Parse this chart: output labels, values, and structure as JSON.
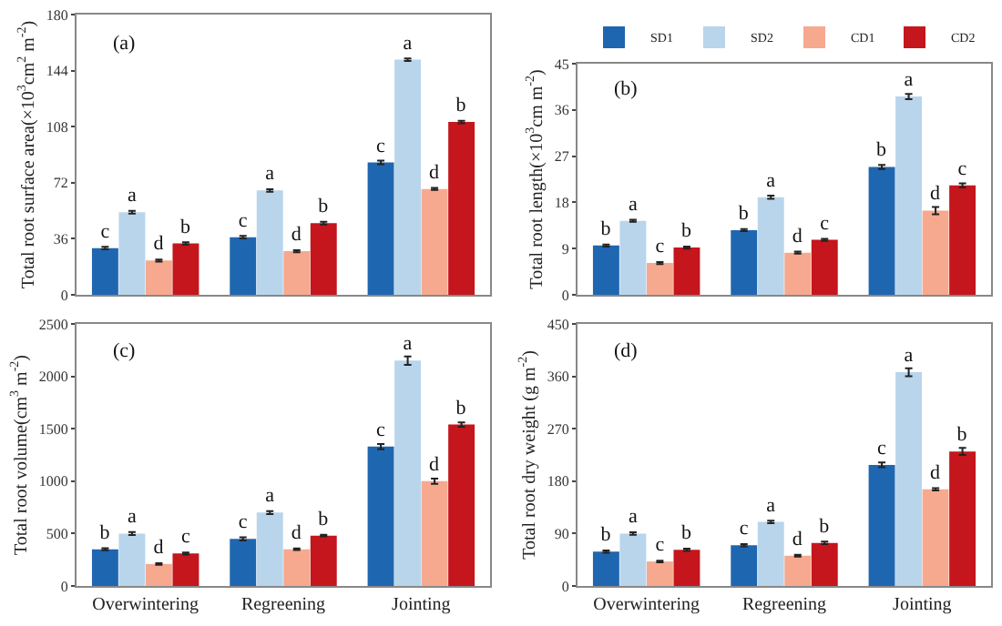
{
  "chart_data": [
    {
      "type": "bar",
      "ylabel": "Total root surface area(×10$^{3}$cm$^{2}$ m$^{-2}$)",
      "annotations": [
        "(a)"
      ],
      "categories": [
        null,
        null,
        null
      ],
      "ylim": [
        0,
        180
      ],
      "yticks": [
        0,
        36,
        72,
        108,
        144,
        180
      ],
      "grid": false,
      "legend": false,
      "series": [
        {
          "color": "#1f66b0",
          "values": [
            30,
            37,
            85
          ],
          "errors": [
            0.8,
            0.8,
            1.2
          ],
          "value_labels": [
            "c",
            "c",
            "c"
          ]
        },
        {
          "color": "#b8d5ec",
          "values": [
            53,
            67,
            151
          ],
          "errors": [
            0.9,
            0.8,
            0.8
          ],
          "value_labels": [
            "a",
            "a",
            "a"
          ]
        },
        {
          "color": "#f6a98e",
          "values": [
            22,
            28,
            68
          ],
          "errors": [
            0.6,
            0.7,
            0.7
          ],
          "value_labels": [
            "d",
            "d",
            "d"
          ]
        },
        {
          "color": "#c4161c",
          "values": [
            33,
            46,
            111
          ],
          "errors": [
            0.7,
            0.9,
            0.8
          ],
          "value_labels": [
            "b",
            "b",
            "b"
          ]
        }
      ]
    },
    {
      "type": "bar",
      "ylabel": "Total root length(×10$^{3}$cm m$^{-2}$)",
      "annotations": [
        "(b)"
      ],
      "categories": [
        null,
        null,
        null
      ],
      "ylim": [
        0,
        45
      ],
      "yticks": [
        0,
        9,
        18,
        27,
        36,
        45
      ],
      "grid": false,
      "legend": "top right",
      "series": [
        {
          "name": "SD1",
          "color": "#1f66b0",
          "values": [
            9.6,
            12.6,
            24.9
          ],
          "errors": [
            0.2,
            0.2,
            0.4
          ],
          "value_labels": [
            "b",
            "b",
            "b"
          ]
        },
        {
          "name": "SD2",
          "color": "#b8d5ec",
          "values": [
            14.4,
            19.0,
            38.6
          ],
          "errors": [
            0.2,
            0.3,
            0.5
          ],
          "value_labels": [
            "a",
            "a",
            "a"
          ]
        },
        {
          "name": "CD1",
          "color": "#f6a98e",
          "values": [
            6.2,
            8.2,
            16.4
          ],
          "errors": [
            0.2,
            0.2,
            0.7
          ],
          "value_labels": [
            "c",
            "d",
            "d"
          ]
        },
        {
          "name": "CD2",
          "color": "#c4161c",
          "values": [
            9.2,
            10.7,
            21.3
          ],
          "errors": [
            0.2,
            0.2,
            0.4
          ],
          "value_labels": [
            "b",
            "c",
            "c"
          ]
        }
      ]
    },
    {
      "type": "bar",
      "ylabel": "Total root volume(cm$^{3}$ m$^{-2}$)",
      "annotations": [
        "(c)"
      ],
      "categories": [
        "Overwintering",
        "Regreening",
        "Jointing"
      ],
      "ylim": [
        0,
        2500
      ],
      "yticks": [
        0,
        500,
        1000,
        1500,
        2000,
        2500
      ],
      "grid": false,
      "legend": false,
      "series": [
        {
          "color": "#1f66b0",
          "values": [
            350,
            450,
            1330
          ],
          "errors": [
            10,
            15,
            25
          ],
          "value_labels": [
            "b",
            "c",
            "c"
          ]
        },
        {
          "color": "#b8d5ec",
          "values": [
            500,
            700,
            2150
          ],
          "errors": [
            15,
            15,
            40
          ],
          "value_labels": [
            "a",
            "a",
            "a"
          ]
        },
        {
          "color": "#f6a98e",
          "values": [
            210,
            350,
            1000
          ],
          "errors": [
            8,
            8,
            25
          ],
          "value_labels": [
            "d",
            "d",
            "d"
          ]
        },
        {
          "color": "#c4161c",
          "values": [
            310,
            480,
            1540
          ],
          "errors": [
            10,
            8,
            20
          ],
          "value_labels": [
            "c",
            "b",
            "b"
          ]
        }
      ]
    },
    {
      "type": "bar",
      "ylabel": "Total root dry weight (g m$^{-2}$)",
      "annotations": [
        "(d)"
      ],
      "categories": [
        "Overwintering",
        "Regreening",
        "Jointing"
      ],
      "ylim": [
        0,
        450
      ],
      "yticks": [
        0,
        90,
        180,
        270,
        360,
        450
      ],
      "grid": false,
      "legend": false,
      "series": [
        {
          "color": "#1f66b0",
          "values": [
            59,
            70,
            208
          ],
          "errors": [
            2,
            2,
            4
          ],
          "value_labels": [
            "b",
            "c",
            "c"
          ]
        },
        {
          "color": "#b8d5ec",
          "values": [
            90,
            110,
            367
          ],
          "errors": [
            2,
            2,
            7
          ],
          "value_labels": [
            "a",
            "a",
            "a"
          ]
        },
        {
          "color": "#f6a98e",
          "values": [
            42,
            52,
            166
          ],
          "errors": [
            1.5,
            1.5,
            2
          ],
          "value_labels": [
            "c",
            "d",
            "d"
          ]
        },
        {
          "color": "#c4161c",
          "values": [
            62,
            74,
            231
          ],
          "errors": [
            2,
            2,
            6
          ],
          "value_labels": [
            "b",
            "b",
            "b"
          ]
        }
      ]
    }
  ]
}
